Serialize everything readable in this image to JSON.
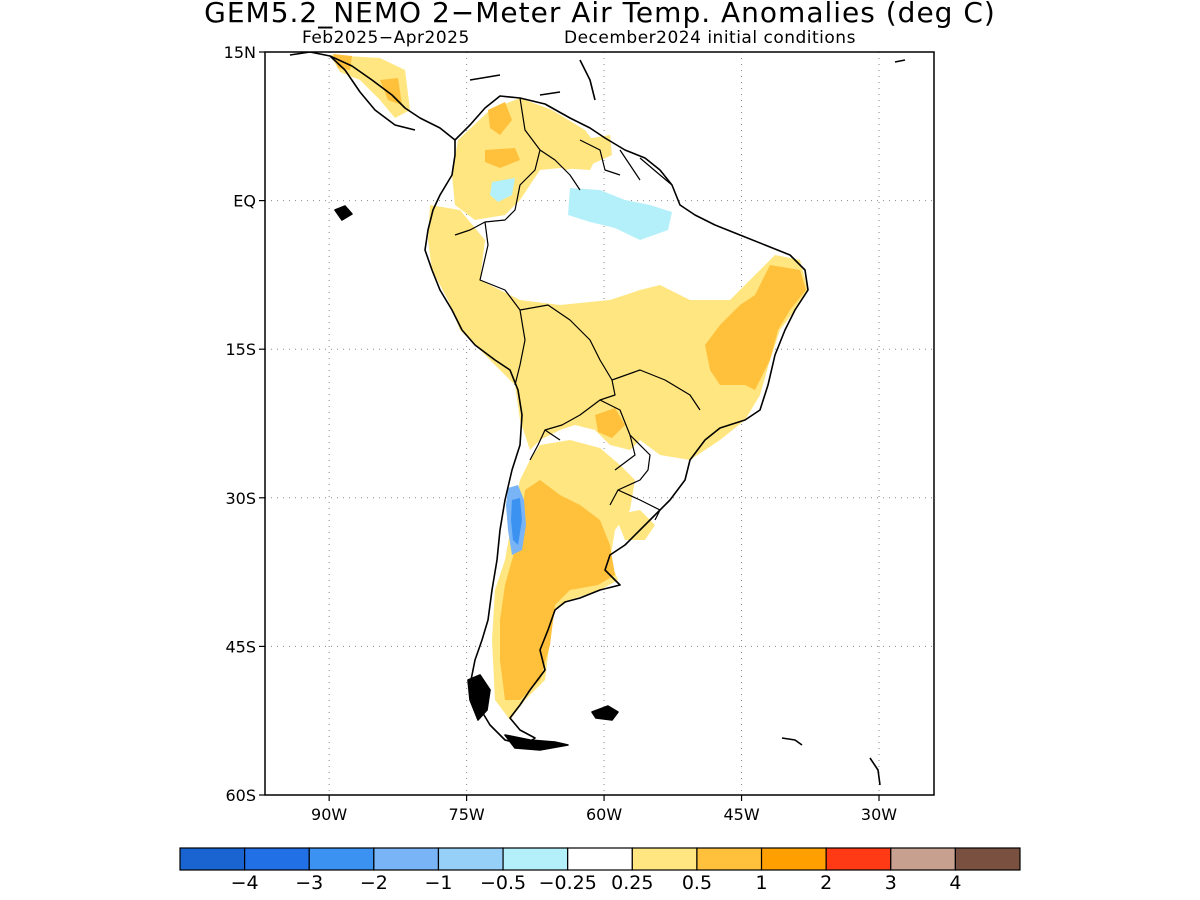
{
  "title": "GEM5.2_NEMO 2−Meter Air Temp. Anomalies (deg C)",
  "subtitle_left": "Feb2025−Apr2025",
  "subtitle_right": "December2024 initial conditions",
  "map": {
    "lon_range": [
      -97,
      -24
    ],
    "lat_range": [
      -60,
      15
    ],
    "lat_ticks": [
      {
        "value": 15,
        "label": "15N"
      },
      {
        "value": 0,
        "label": "EQ"
      },
      {
        "value": -15,
        "label": "15S"
      },
      {
        "value": -30,
        "label": "30S"
      },
      {
        "value": -45,
        "label": "45S"
      },
      {
        "value": -60,
        "label": "60S"
      }
    ],
    "lon_ticks": [
      {
        "value": -90,
        "label": "90W"
      },
      {
        "value": -75,
        "label": "75W"
      },
      {
        "value": -60,
        "label": "60W"
      },
      {
        "value": -45,
        "label": "45W"
      },
      {
        "value": -30,
        "label": "30W"
      }
    ],
    "grid": "dotted"
  },
  "colorbar": {
    "colors": [
      "#1a64d2",
      "#2170e6",
      "#3c92f0",
      "#78b4f6",
      "#96d0f8",
      "#b4f0fa",
      "#ffffff",
      "#ffe680",
      "#ffc03c",
      "#ffa000",
      "#ff3a14",
      "#c8a090",
      "#7a5040"
    ],
    "labels": [
      "−4",
      "−3",
      "−2",
      "−1",
      "−0.5",
      "−0.25",
      "0.25",
      "0.5",
      "1",
      "2",
      "3",
      "4"
    ]
  },
  "legend_colors": {
    "land_outline": "#000000",
    "warm_weak": "#ffe680",
    "warm_moderate": "#ffc03c",
    "warm_strong": "#ffa000",
    "cool_weak": "#b4f0fa",
    "cool_moderate": "#78b4f6",
    "cool_strong": "#3c92f0"
  }
}
